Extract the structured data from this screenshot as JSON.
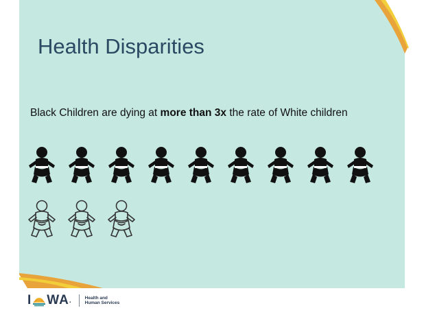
{
  "slide": {
    "title": "Health Disparities",
    "statement_pre": "Black Children are dying at ",
    "statement_bold": "more than 3x",
    "statement_post": " the rate of White children"
  },
  "icons": {
    "black_children_count": 9,
    "white_children_count": 3,
    "black_icon": "baby-filled-icon",
    "white_icon": "baby-outline-icon"
  },
  "logo": {
    "word_prefix": "I",
    "word_suffix": "WA",
    "trademark": ".",
    "sub_line1": "Health and",
    "sub_line2": "Human Services"
  },
  "colors": {
    "background_panel": "#c5e8e0",
    "accent_orange": "#e8a43a",
    "accent_yellow": "#f2cf3a",
    "title": "#2a4a63"
  }
}
